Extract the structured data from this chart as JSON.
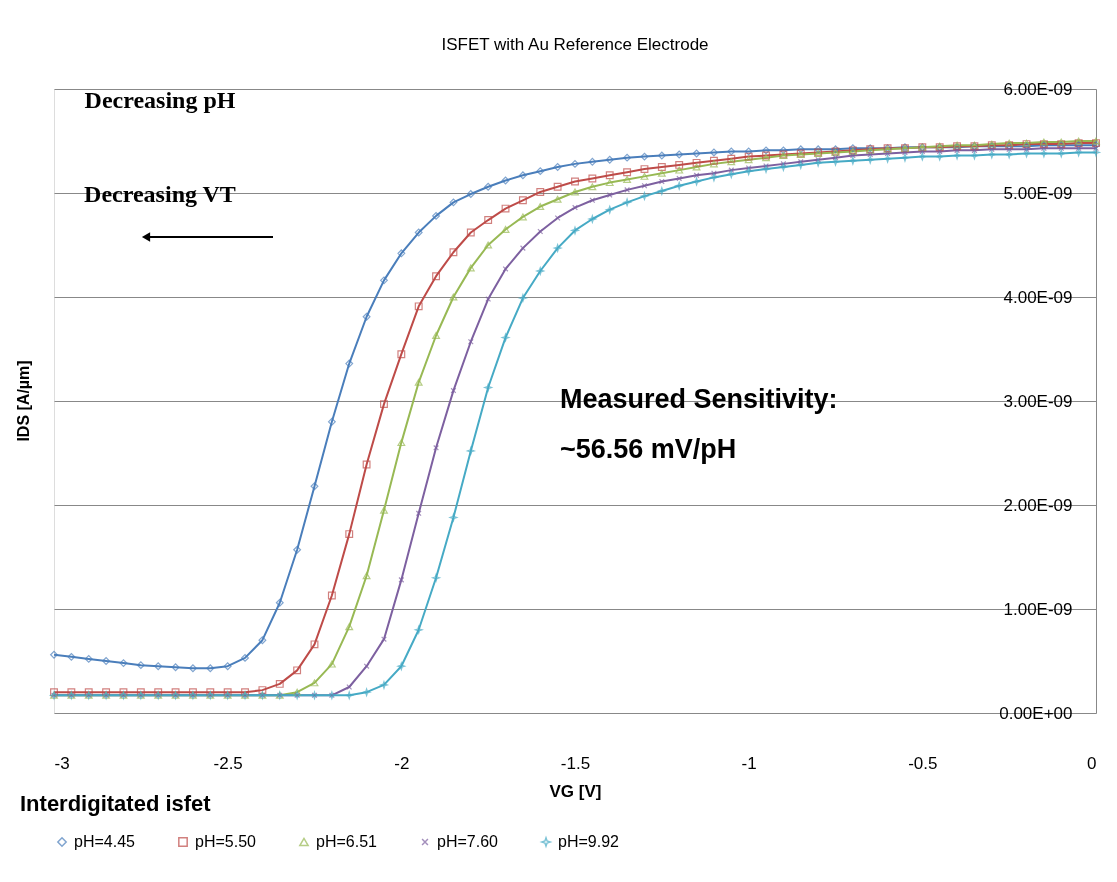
{
  "chart_data": {
    "type": "line",
    "title": "ISFET with Au Reference Electrode",
    "xlabel": "VG [V]",
    "ylabel": "IDS [A/µm]",
    "x": [
      -3.0,
      -2.95,
      -2.9,
      -2.85,
      -2.8,
      -2.75,
      -2.7,
      -2.65,
      -2.6,
      -2.55,
      -2.5,
      -2.45,
      -2.4,
      -2.35,
      -2.3,
      -2.25,
      -2.2,
      -2.15,
      -2.1,
      -2.05,
      -2.0,
      -1.95,
      -1.9,
      -1.85,
      -1.8,
      -1.75,
      -1.7,
      -1.65,
      -1.6,
      -1.55,
      -1.5,
      -1.45,
      -1.4,
      -1.35,
      -1.3,
      -1.25,
      -1.2,
      -1.15,
      -1.1,
      -1.05,
      -1.0,
      -0.95,
      -0.9,
      -0.85,
      -0.8,
      -0.75,
      -0.7,
      -0.65,
      -0.6,
      -0.55,
      -0.5,
      -0.45,
      -0.4,
      -0.35,
      -0.3,
      -0.25,
      -0.2,
      -0.15,
      -0.1,
      -0.05,
      0.0
    ],
    "series": [
      {
        "name": "pH=4.45",
        "color": "#4a7ebb",
        "marker": "diamond",
        "values": [
          5.6e-10,
          5.4e-10,
          5.2e-10,
          5e-10,
          4.8e-10,
          4.6e-10,
          4.5e-10,
          4.4e-10,
          4.3e-10,
          4.3e-10,
          4.5e-10,
          5.3e-10,
          7e-10,
          1.06e-09,
          1.57e-09,
          2.18e-09,
          2.8e-09,
          3.36e-09,
          3.81e-09,
          4.16e-09,
          4.42e-09,
          4.62e-09,
          4.78e-09,
          4.91e-09,
          4.99e-09,
          5.06e-09,
          5.12e-09,
          5.17e-09,
          5.21e-09,
          5.25e-09,
          5.28e-09,
          5.3e-09,
          5.32e-09,
          5.34e-09,
          5.35e-09,
          5.36e-09,
          5.37e-09,
          5.38e-09,
          5.39e-09,
          5.4e-09,
          5.4e-09,
          5.41e-09,
          5.41e-09,
          5.42e-09,
          5.42e-09,
          5.42e-09,
          5.43e-09,
          5.43e-09,
          5.43e-09,
          5.44e-09,
          5.44e-09,
          5.44e-09,
          5.44e-09,
          5.45e-09,
          5.45e-09,
          5.45e-09,
          5.45e-09,
          5.46e-09,
          5.46e-09,
          5.46e-09,
          5.46e-09
        ]
      },
      {
        "name": "pH=5.50",
        "color": "#be4b48",
        "marker": "square",
        "values": [
          2e-10,
          2e-10,
          2e-10,
          2e-10,
          2e-10,
          2e-10,
          2e-10,
          2e-10,
          2e-10,
          2e-10,
          2e-10,
          2e-10,
          2.2e-10,
          2.8e-10,
          4.1e-10,
          6.6e-10,
          1.13e-09,
          1.72e-09,
          2.39e-09,
          2.97e-09,
          3.45e-09,
          3.91e-09,
          4.2e-09,
          4.43e-09,
          4.62e-09,
          4.74e-09,
          4.85e-09,
          4.93e-09,
          5.01e-09,
          5.06e-09,
          5.11e-09,
          5.14e-09,
          5.17e-09,
          5.2e-09,
          5.23e-09,
          5.25e-09,
          5.27e-09,
          5.29e-09,
          5.31e-09,
          5.33e-09,
          5.35e-09,
          5.36e-09,
          5.37e-09,
          5.38e-09,
          5.39e-09,
          5.4e-09,
          5.41e-09,
          5.42e-09,
          5.43e-09,
          5.43e-09,
          5.44e-09,
          5.44e-09,
          5.45e-09,
          5.45e-09,
          5.46e-09,
          5.46e-09,
          5.47e-09,
          5.47e-09,
          5.47e-09,
          5.48e-09,
          5.48e-09
        ]
      },
      {
        "name": "pH=6.51",
        "color": "#98b954",
        "marker": "triangle",
        "values": [
          1.7e-10,
          1.7e-10,
          1.7e-10,
          1.7e-10,
          1.7e-10,
          1.7e-10,
          1.7e-10,
          1.7e-10,
          1.7e-10,
          1.7e-10,
          1.7e-10,
          1.7e-10,
          1.7e-10,
          1.7e-10,
          2e-10,
          2.9e-10,
          4.7e-10,
          8.3e-10,
          1.32e-09,
          1.95e-09,
          2.6e-09,
          3.18e-09,
          3.63e-09,
          4e-09,
          4.28e-09,
          4.5e-09,
          4.65e-09,
          4.77e-09,
          4.87e-09,
          4.94e-09,
          5.01e-09,
          5.06e-09,
          5.1e-09,
          5.13e-09,
          5.16e-09,
          5.19e-09,
          5.22e-09,
          5.25e-09,
          5.28e-09,
          5.3e-09,
          5.32e-09,
          5.34e-09,
          5.36e-09,
          5.37e-09,
          5.38e-09,
          5.39e-09,
          5.4e-09,
          5.41e-09,
          5.42e-09,
          5.43e-09,
          5.44e-09,
          5.45e-09,
          5.46e-09,
          5.46e-09,
          5.47e-09,
          5.48e-09,
          5.48e-09,
          5.49e-09,
          5.49e-09,
          5.5e-09,
          5.5e-09
        ]
      },
      {
        "name": "pH=7.60",
        "color": "#7d60a0",
        "marker": "cross",
        "values": [
          1.7e-10,
          1.7e-10,
          1.7e-10,
          1.7e-10,
          1.7e-10,
          1.7e-10,
          1.7e-10,
          1.7e-10,
          1.7e-10,
          1.7e-10,
          1.7e-10,
          1.7e-10,
          1.7e-10,
          1.7e-10,
          1.7e-10,
          1.7e-10,
          1.7e-10,
          2.5e-10,
          4.5e-10,
          7.1e-10,
          1.28e-09,
          1.92e-09,
          2.55e-09,
          3.1e-09,
          3.57e-09,
          3.98e-09,
          4.27e-09,
          4.47e-09,
          4.63e-09,
          4.76e-09,
          4.86e-09,
          4.93e-09,
          4.98e-09,
          5.03e-09,
          5.07e-09,
          5.11e-09,
          5.14e-09,
          5.17e-09,
          5.19e-09,
          5.22e-09,
          5.24e-09,
          5.26e-09,
          5.28e-09,
          5.3e-09,
          5.32e-09,
          5.34e-09,
          5.36e-09,
          5.37e-09,
          5.38e-09,
          5.39e-09,
          5.4e-09,
          5.4e-09,
          5.41e-09,
          5.41e-09,
          5.42e-09,
          5.42e-09,
          5.42e-09,
          5.43e-09,
          5.43e-09,
          5.43e-09,
          5.43e-09
        ]
      },
      {
        "name": "pH=9.92",
        "color": "#46aac5",
        "marker": "star",
        "values": [
          1.7e-10,
          1.7e-10,
          1.7e-10,
          1.7e-10,
          1.7e-10,
          1.7e-10,
          1.7e-10,
          1.7e-10,
          1.7e-10,
          1.7e-10,
          1.7e-10,
          1.7e-10,
          1.7e-10,
          1.7e-10,
          1.7e-10,
          1.7e-10,
          1.7e-10,
          1.7e-10,
          2e-10,
          2.7e-10,
          4.5e-10,
          8e-10,
          1.3e-09,
          1.88e-09,
          2.52e-09,
          3.13e-09,
          3.61e-09,
          3.99e-09,
          4.25e-09,
          4.47e-09,
          4.64e-09,
          4.75e-09,
          4.84e-09,
          4.91e-09,
          4.97e-09,
          5.02e-09,
          5.07e-09,
          5.11e-09,
          5.15e-09,
          5.18e-09,
          5.21e-09,
          5.23e-09,
          5.25e-09,
          5.27e-09,
          5.29e-09,
          5.3e-09,
          5.31e-09,
          5.32e-09,
          5.33e-09,
          5.34e-09,
          5.35e-09,
          5.35e-09,
          5.36e-09,
          5.36e-09,
          5.37e-09,
          5.37e-09,
          5.38e-09,
          5.38e-09,
          5.38e-09,
          5.39e-09,
          5.39e-09
        ]
      }
    ],
    "xlim": [
      -3,
      0
    ],
    "xticks": [
      -3,
      -2.5,
      -2,
      -1.5,
      -1,
      -0.5,
      0
    ],
    "ylim": [
      0,
      6e-09
    ],
    "yticks": [
      {
        "value": 0,
        "label": "0.00E+00"
      },
      {
        "value": 1e-09,
        "label": "1.00E-09"
      },
      {
        "value": 2e-09,
        "label": "2.00E-09"
      },
      {
        "value": 3e-09,
        "label": "3.00E-09"
      },
      {
        "value": 4e-09,
        "label": "4.00E-09"
      },
      {
        "value": 5e-09,
        "label": "5.00E-09"
      },
      {
        "value": 6e-09,
        "label": "6.00E-09"
      }
    ],
    "grid": "y",
    "legend": "bottom",
    "line_style": "solid",
    "annotations": [
      "Measured Sensitivity:",
      "~56.56 mV/pH",
      "Interdigitated isfet",
      "Decreasing pH",
      "Decreasing VT"
    ]
  }
}
